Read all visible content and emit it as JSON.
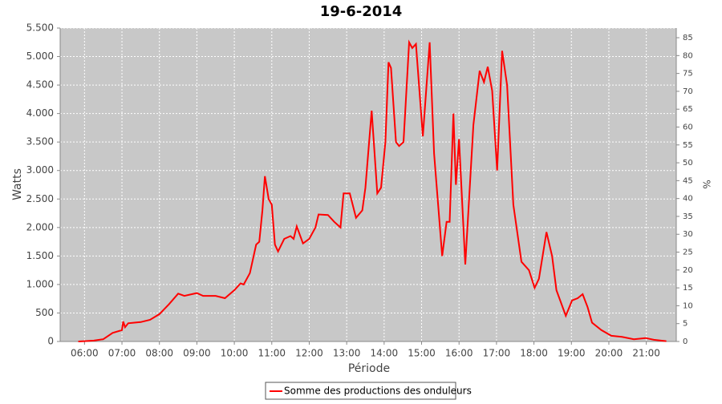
{
  "chart_data": {
    "type": "line",
    "title": "19-6-2014",
    "x_label": "Période",
    "y_label": "Watts",
    "y2_label": "%",
    "x": [
      "05:50",
      "06:00",
      "06:15",
      "06:30",
      "06:45",
      "07:00",
      "07:02",
      "07:05",
      "07:10",
      "07:20",
      "07:30",
      "07:45",
      "08:00",
      "08:15",
      "08:30",
      "08:40",
      "09:00",
      "09:10",
      "09:30",
      "09:45",
      "10:00",
      "10:10",
      "10:15",
      "10:25",
      "10:35",
      "10:40",
      "10:45",
      "10:49",
      "10:55",
      "11:00",
      "11:05",
      "11:10",
      "11:20",
      "11:30",
      "11:35",
      "11:40",
      "11:50",
      "12:00",
      "12:10",
      "12:15",
      "12:30",
      "12:40",
      "12:50",
      "12:55",
      "13:05",
      "13:15",
      "13:25",
      "13:30",
      "13:40",
      "13:49",
      "13:55",
      "14:02",
      "14:07",
      "14:11",
      "14:19",
      "14:24",
      "14:31",
      "14:40",
      "14:45",
      "14:51",
      "15:02",
      "15:13",
      "15:20",
      "15:33",
      "15:40",
      "15:45",
      "15:51",
      "15:55",
      "16:00",
      "16:10",
      "16:23",
      "16:33",
      "16:40",
      "16:46",
      "16:53",
      "17:01",
      "17:09",
      "17:17",
      "17:27",
      "17:40",
      "17:52",
      "18:01",
      "18:08",
      "18:20",
      "18:29",
      "18:36",
      "18:51",
      "19:01",
      "19:10",
      "19:18",
      "19:26",
      "19:33",
      "19:48",
      "20:04",
      "20:21",
      "20:40",
      "20:59",
      "21:12",
      "21:32"
    ],
    "series": [
      {
        "name": "Somme des productions des onduleurs",
        "color": "#ff0000",
        "values": [
          0,
          5,
          15,
          40,
          150,
          200,
          350,
          250,
          320,
          330,
          340,
          380,
          480,
          650,
          840,
          800,
          850,
          800,
          800,
          760,
          900,
          1020,
          1000,
          1200,
          1700,
          1750,
          2300,
          2900,
          2500,
          2400,
          1700,
          1580,
          1800,
          1850,
          1800,
          2020,
          1720,
          1800,
          2000,
          2230,
          2220,
          2100,
          2000,
          2600,
          2600,
          2170,
          2300,
          2700,
          4050,
          2600,
          2700,
          3500,
          4900,
          4800,
          3500,
          3430,
          3500,
          5250,
          5150,
          5220,
          3600,
          5250,
          3300,
          1500,
          2100,
          2100,
          4000,
          2750,
          3550,
          1350,
          3800,
          4750,
          4550,
          4820,
          4400,
          3000,
          5100,
          4500,
          2400,
          1400,
          1250,
          940,
          1100,
          1920,
          1500,
          900,
          450,
          720,
          760,
          830,
          600,
          330,
          200,
          100,
          80,
          40,
          60,
          30,
          5
        ]
      }
    ],
    "xlim": [
      "05:21",
      "21:48"
    ],
    "xticks": [
      "06:00",
      "07:00",
      "08:00",
      "09:00",
      "10:00",
      "11:00",
      "12:00",
      "13:00",
      "14:00",
      "15:00",
      "16:00",
      "17:00",
      "18:00",
      "19:00",
      "20:00",
      "21:00"
    ],
    "ylim": [
      0,
      5500
    ],
    "yticks": [
      0,
      500,
      {
        "value": 1000,
        "label": "1.000"
      },
      {
        "value": 1500,
        "label": "1.500"
      },
      {
        "value": 2000,
        "label": "2.000"
      },
      {
        "value": 2500,
        "label": "2.500"
      },
      {
        "value": 3000,
        "label": "3.000"
      },
      {
        "value": 3500,
        "label": "3.500"
      },
      {
        "value": 4000,
        "label": "4.000"
      },
      {
        "value": 4500,
        "label": "4.500"
      },
      {
        "value": 5000,
        "label": "5.000"
      },
      {
        "value": 5500,
        "label": "5.500"
      }
    ],
    "y2lim": [
      0,
      87.7
    ],
    "y2ticks": [
      0,
      5,
      10,
      15,
      20,
      25,
      30,
      35,
      40,
      45,
      50,
      55,
      60,
      65,
      70,
      75,
      80,
      85
    ],
    "grid": true,
    "legend": "bottom"
  }
}
